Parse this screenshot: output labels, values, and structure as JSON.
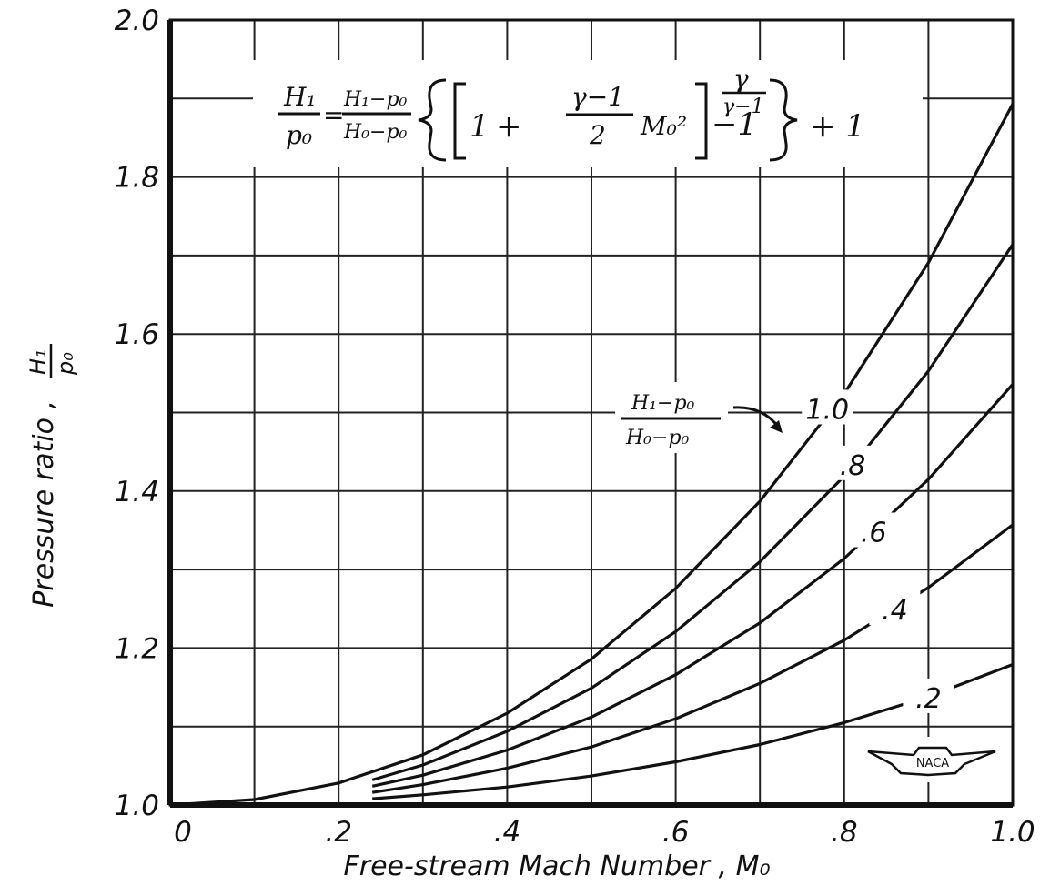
{
  "chart_data": {
    "type": "line",
    "title": "",
    "xlabel": "Free-stream Mach Number , M₀",
    "ylabel": "Pressure ratio , H₁/p₀",
    "ylabel_text": "Pressure ratio ,",
    "ylabel_frac": {
      "num": "H₁",
      "den": "p₀"
    },
    "xlim": [
      0,
      1.0
    ],
    "ylim": [
      1.0,
      2.0
    ],
    "x_tick_labels": [
      "0",
      ".2",
      ".4",
      ".6",
      ".8",
      "1.0"
    ],
    "y_tick_labels": [
      "1.0",
      "1.2",
      "1.4",
      "1.6",
      "1.8",
      "2.0"
    ],
    "grid": true,
    "series_label_header": {
      "num": "H₁−p₀",
      "den": "H₀−p₀"
    },
    "series": [
      {
        "name": "1.0",
        "x": [
          0,
          0.1,
          0.2,
          0.3,
          0.4,
          0.5,
          0.6,
          0.7,
          0.8,
          0.9,
          1.0
        ],
        "values": [
          1.0,
          1.007,
          1.028,
          1.064,
          1.117,
          1.186,
          1.276,
          1.387,
          1.524,
          1.691,
          1.893
        ]
      },
      {
        "name": ".8",
        "x": [
          0.24,
          0.3,
          0.4,
          0.5,
          0.6,
          0.7,
          0.8,
          0.9,
          1.0
        ],
        "values": [
          1.032,
          1.051,
          1.094,
          1.149,
          1.221,
          1.31,
          1.419,
          1.553,
          1.714
        ]
      },
      {
        "name": ".6",
        "x": [
          0.24,
          0.3,
          0.4,
          0.5,
          0.6,
          0.7,
          0.8,
          0.9,
          1.0
        ],
        "values": [
          1.024,
          1.038,
          1.07,
          1.112,
          1.166,
          1.232,
          1.314,
          1.415,
          1.536
        ]
      },
      {
        "name": ".4",
        "x": [
          0.24,
          0.3,
          0.4,
          0.5,
          0.6,
          0.7,
          0.8,
          0.9,
          1.0
        ],
        "values": [
          1.016,
          1.026,
          1.047,
          1.074,
          1.11,
          1.155,
          1.21,
          1.277,
          1.357
        ]
      },
      {
        "name": ".2",
        "x": [
          0.24,
          0.3,
          0.4,
          0.5,
          0.6,
          0.7,
          0.8,
          0.9,
          1.0
        ],
        "values": [
          1.008,
          1.013,
          1.023,
          1.037,
          1.055,
          1.077,
          1.105,
          1.138,
          1.179
        ]
      }
    ],
    "formula": {
      "lhs_num": "H₁",
      "lhs_den": "p₀",
      "mid_num": "H₁−p₀",
      "mid_den": "H₀−p₀",
      "one": "1",
      "plus": "+",
      "gamma_num": "γ−1",
      "two": "2",
      "mach": "M₀²",
      "exp_num": "γ",
      "exp_den": "γ−1",
      "minus_one": "−1",
      "tail": "+ 1"
    },
    "logo": "NACA"
  }
}
